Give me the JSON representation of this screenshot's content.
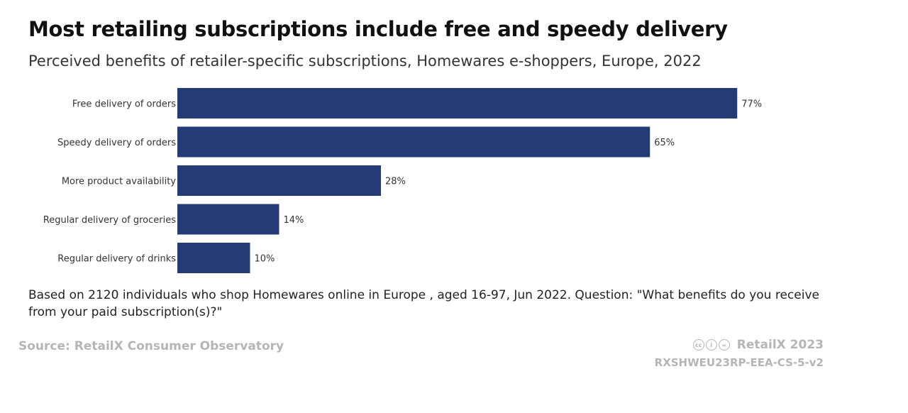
{
  "title": "Most retailing subscriptions include free and speedy delivery",
  "subtitle": "Perceived benefits of retailer-specific subscriptions, Homewares e-shoppers, Europe, 2022",
  "footnote": "Based on 2120 individuals who shop Homewares online in Europe , aged 16-97, Jun 2022. Question: \"What benefits do you receive from your paid subscription(s)?\"",
  "source": "Source: RetailX Consumer Observatory",
  "credit": "RetailX 2023",
  "code": "RXSHWEU23RP-EEA-CS-5-v2",
  "icons": [
    "cc-icon",
    "by-icon",
    "nd-icon"
  ],
  "colors": {
    "bar": "#253b76"
  },
  "chart_data": {
    "type": "bar",
    "orientation": "horizontal",
    "categories": [
      "Free delivery of orders",
      "Speedy delivery of orders",
      "More product availability",
      "Regular delivery of groceries",
      "Regular delivery of drinks"
    ],
    "values": [
      77,
      65,
      28,
      14,
      10
    ],
    "value_labels": [
      "77%",
      "65%",
      "28%",
      "14%",
      "10%"
    ],
    "unit": "%",
    "xlim": [
      0,
      100
    ],
    "grid": false,
    "legend": "none"
  }
}
